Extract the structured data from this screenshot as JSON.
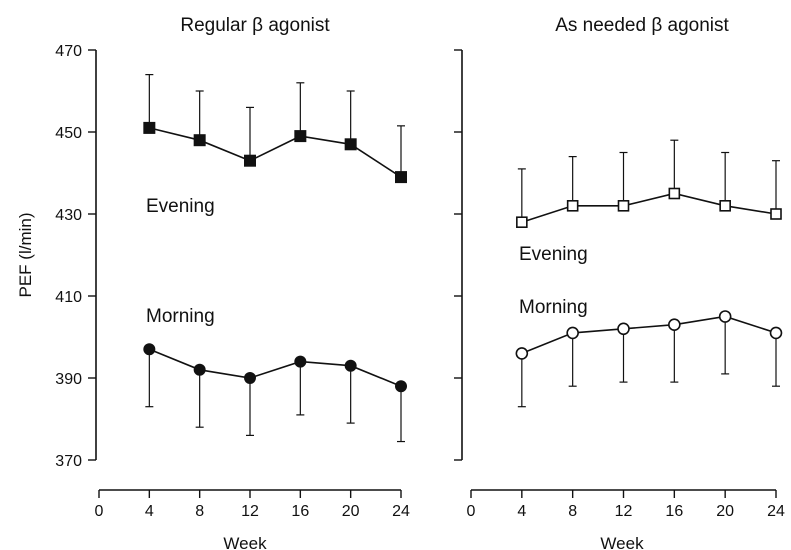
{
  "chart_data": [
    {
      "type": "line",
      "title": "Regular β agonist",
      "xlabel": "Week",
      "ylabel": "PEF (l/min)",
      "x": [
        4,
        8,
        12,
        16,
        20,
        24
      ],
      "xticks": [
        0,
        4,
        8,
        12,
        16,
        20,
        24
      ],
      "xlim": [
        0,
        24
      ],
      "ylim": [
        370,
        470
      ],
      "yticks": [
        370,
        390,
        410,
        430,
        450,
        470
      ],
      "series": [
        {
          "name": "Evening",
          "marker": "filled-square",
          "values": [
            451,
            448,
            443,
            449,
            447,
            439
          ],
          "error_upper": [
            464,
            460,
            456,
            462,
            460,
            451.5
          ]
        },
        {
          "name": "Morning",
          "marker": "filled-circle",
          "values": [
            397,
            392,
            390,
            394,
            393,
            388
          ],
          "error_lower": [
            383,
            378,
            376,
            381,
            379,
            374.5
          ]
        }
      ]
    },
    {
      "type": "line",
      "title": "As needed β agonist",
      "xlabel": "Week",
      "x": [
        4,
        8,
        12,
        16,
        20,
        24
      ],
      "xticks": [
        0,
        4,
        8,
        12,
        16,
        20,
        24
      ],
      "xlim": [
        0,
        24
      ],
      "ylim": [
        370,
        470
      ],
      "series": [
        {
          "name": "Evening",
          "marker": "open-square",
          "values": [
            428,
            432,
            432,
            435,
            432,
            430
          ],
          "error_upper": [
            441,
            444,
            445,
            448,
            445,
            443
          ]
        },
        {
          "name": "Morning",
          "marker": "open-circle",
          "values": [
            396,
            401,
            402,
            403,
            405,
            401
          ],
          "error_lower": [
            383,
            388,
            389,
            389,
            391,
            388
          ]
        }
      ]
    }
  ]
}
